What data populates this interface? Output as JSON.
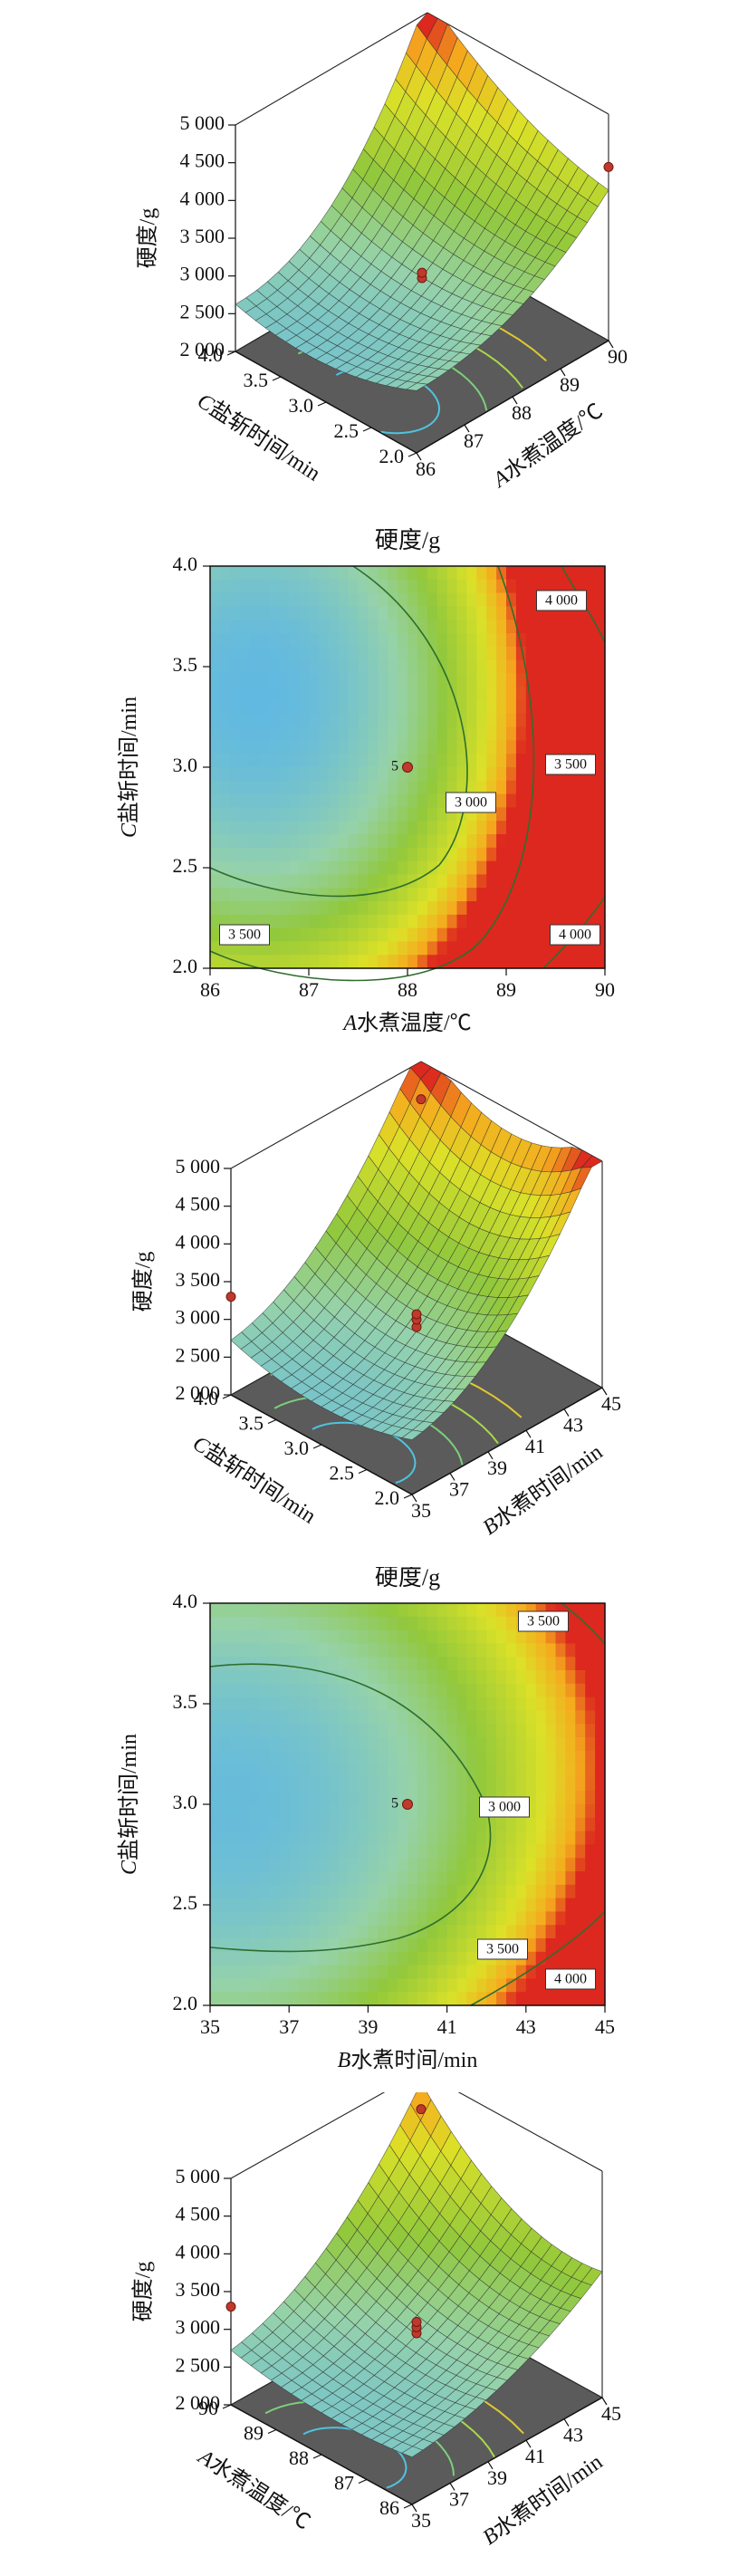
{
  "chart_data": [
    {
      "type": "surface3d",
      "zlabel": "硬度/g",
      "z_ticks": [
        "5 000",
        "4 500",
        "4 000",
        "3 500",
        "3 000",
        "2 500",
        "2 000"
      ],
      "left_axis": {
        "label_italic": "C",
        "label_rest": "盐斩时间/min",
        "ticks": [
          "4.0",
          "3.5",
          "3.0",
          "2.5",
          "2.0"
        ]
      },
      "right_axis": {
        "label_italic": "A",
        "label_rest": "水煮温度/℃",
        "ticks": [
          "86",
          "87",
          "88",
          "89",
          "90"
        ]
      },
      "zlim": [
        2000,
        5000
      ]
    },
    {
      "type": "contour",
      "title": "硬度/g",
      "xlabel_italic": "A",
      "xlabel_rest": "水煮温度/℃",
      "ylabel_italic": "C",
      "ylabel_rest": "盐斩时间/min",
      "x_ticks": [
        "86",
        "87",
        "88",
        "89",
        "90"
      ],
      "y_ticks": [
        "2.0",
        "2.5",
        "3.0",
        "3.5",
        "4.0"
      ],
      "xlim": [
        86,
        90
      ],
      "ylim": [
        2.0,
        4.0
      ],
      "contour_labels": [
        "4 000",
        "3 500",
        "3 000",
        "3 500",
        "4 000"
      ],
      "center_label": "5",
      "center_point": [
        88,
        3.0
      ]
    },
    {
      "type": "surface3d",
      "zlabel": "硬度/g",
      "z_ticks": [
        "5 000",
        "4 500",
        "4 000",
        "3 500",
        "3 000",
        "2 500",
        "2 000"
      ],
      "left_axis": {
        "label_italic": "C",
        "label_rest": "盐斩时间/min",
        "ticks": [
          "4.0",
          "3.5",
          "3.0",
          "2.5",
          "2.0"
        ]
      },
      "right_axis": {
        "label_italic": "B",
        "label_rest": "水煮时间/min",
        "ticks": [
          "35",
          "37",
          "39",
          "41",
          "43",
          "45"
        ]
      },
      "zlim": [
        2000,
        5000
      ]
    },
    {
      "type": "contour",
      "title": "硬度/g",
      "xlabel_italic": "B",
      "xlabel_rest": "水煮时间/min",
      "ylabel_italic": "C",
      "ylabel_rest": "盐斩时间/min",
      "x_ticks": [
        "35",
        "37",
        "39",
        "41",
        "43",
        "45"
      ],
      "y_ticks": [
        "2.0",
        "2.5",
        "3.0",
        "3.5",
        "4.0"
      ],
      "xlim": [
        35,
        45
      ],
      "ylim": [
        2.0,
        4.0
      ],
      "contour_labels": [
        "3 500",
        "3 000",
        "3 500",
        "4 000"
      ],
      "center_label": "5",
      "center_point": [
        40,
        3.0
      ]
    },
    {
      "type": "surface3d",
      "zlabel": "硬度/g",
      "z_ticks": [
        "5 000",
        "4 500",
        "4 000",
        "3 500",
        "3 000",
        "2 500",
        "2 000"
      ],
      "left_axis": {
        "label_italic": "A",
        "label_rest": "水煮温度/℃",
        "ticks": [
          "90",
          "89",
          "88",
          "87",
          "86"
        ]
      },
      "right_axis": {
        "label_italic": "B",
        "label_rest": "水煮时间/min",
        "ticks": [
          "35",
          "37",
          "39",
          "41",
          "43",
          "45"
        ]
      },
      "zlim": [
        2000,
        5000
      ]
    }
  ]
}
